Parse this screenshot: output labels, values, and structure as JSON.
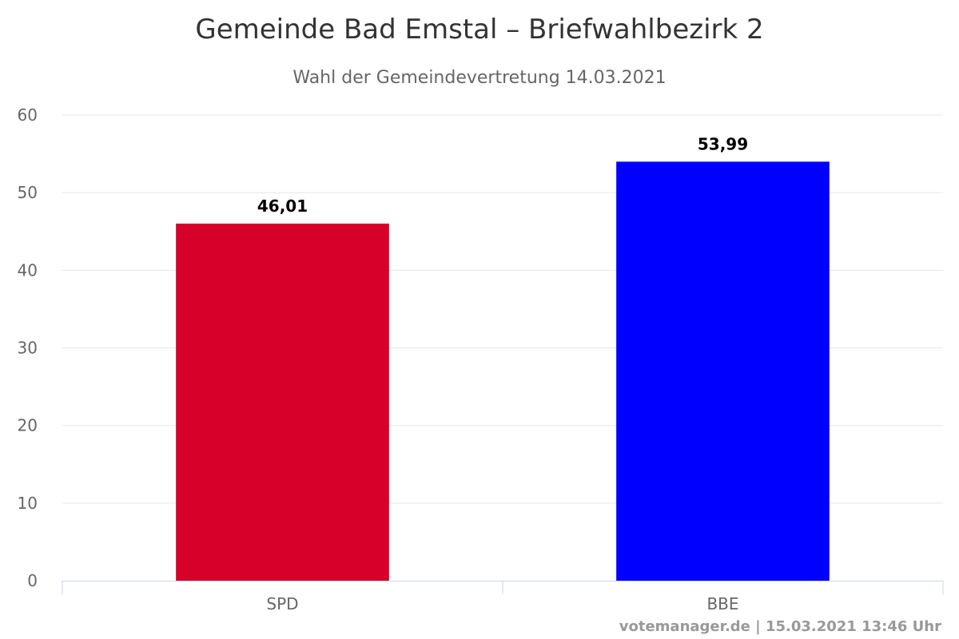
{
  "chart_data": {
    "type": "bar",
    "title": "Gemeinde Bad Emstal – Briefwahlbezirk 2",
    "subtitle": "Wahl der Gemeindevertretung 14.03.2021",
    "categories": [
      "SPD",
      "BBE"
    ],
    "values": [
      46.01,
      53.99
    ],
    "data_labels": [
      "46,01",
      "53,99"
    ],
    "colors": [
      "#d6002b",
      "#0000ff"
    ],
    "ylim": [
      0,
      60
    ],
    "yticks": [
      "0",
      "10",
      "20",
      "30",
      "40",
      "50",
      "60"
    ],
    "grid": true,
    "legend": "none",
    "xlabel": "",
    "ylabel": ""
  },
  "credits": "votemanager.de | 15.03.2021 13:46 Uhr"
}
